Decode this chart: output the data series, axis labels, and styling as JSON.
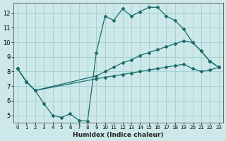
{
  "xlabel": "Humidex (Indice chaleur)",
  "bg_color": "#cce8e8",
  "line_color": "#1a6b6b",
  "grid_color": "#99cccc",
  "xlim": [
    -0.5,
    23.5
  ],
  "ylim": [
    4.5,
    12.7
  ],
  "xticks": [
    0,
    1,
    2,
    3,
    4,
    5,
    6,
    7,
    8,
    9,
    10,
    11,
    12,
    13,
    14,
    15,
    16,
    17,
    18,
    19,
    20,
    21,
    22,
    23
  ],
  "yticks": [
    5,
    6,
    7,
    8,
    9,
    10,
    11,
    12
  ],
  "line1_x": [
    0,
    1,
    2,
    3,
    4,
    5,
    6,
    7,
    8,
    9,
    10,
    11,
    12,
    13,
    14,
    15,
    16,
    17,
    18,
    19,
    20,
    21,
    22,
    23
  ],
  "line1_y": [
    8.2,
    7.3,
    6.7,
    5.8,
    5.0,
    4.85,
    5.1,
    4.65,
    4.6,
    9.3,
    11.8,
    11.5,
    12.3,
    11.8,
    12.1,
    12.4,
    12.4,
    11.8,
    11.5,
    10.9,
    10.0,
    9.4,
    8.7,
    8.3
  ],
  "line2_x": [
    0,
    1,
    2,
    9,
    10,
    11,
    12,
    13,
    14,
    15,
    16,
    17,
    18,
    19,
    20,
    21,
    22,
    23
  ],
  "line2_y": [
    8.2,
    7.3,
    6.7,
    7.7,
    8.0,
    8.3,
    8.6,
    8.8,
    9.1,
    9.3,
    9.5,
    9.7,
    9.9,
    10.1,
    10.0,
    9.4,
    8.7,
    8.3
  ],
  "line3_x": [
    0,
    1,
    2,
    9,
    10,
    11,
    12,
    13,
    14,
    15,
    16,
    17,
    18,
    19,
    20,
    21,
    22,
    23
  ],
  "line3_y": [
    8.2,
    7.3,
    6.7,
    7.5,
    7.6,
    7.7,
    7.8,
    7.9,
    8.0,
    8.1,
    8.2,
    8.3,
    8.4,
    8.5,
    8.2,
    8.0,
    8.1,
    8.3
  ]
}
